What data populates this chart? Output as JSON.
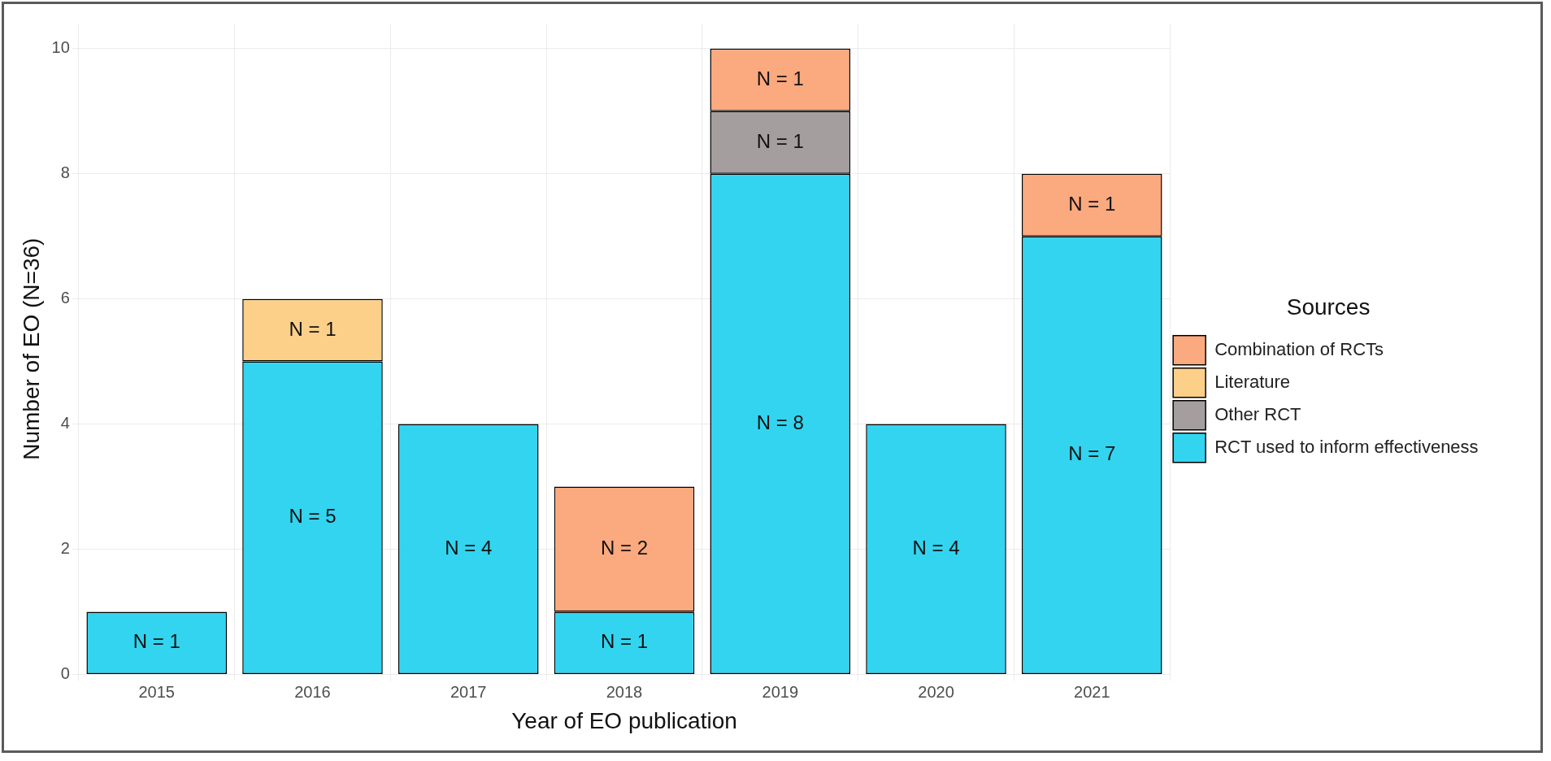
{
  "chart_data": {
    "type": "bar",
    "stacked": true,
    "xlabel": "Year of EO publication",
    "ylabel": "Number of EO (N=36)",
    "legend_title": "Sources",
    "legend": "right",
    "grid": true,
    "categories": [
      "2015",
      "2016",
      "2017",
      "2018",
      "2019",
      "2020",
      "2021"
    ],
    "ylim": [
      0,
      10.4
    ],
    "yticks": [
      0,
      2,
      4,
      6,
      8,
      10
    ],
    "series": [
      {
        "name": "RCT used to inform effectiveness",
        "color": "#33d4ef",
        "values": [
          1,
          5,
          4,
          1,
          8,
          4,
          7
        ],
        "value_labels": [
          "N = 1",
          "N = 5",
          "N = 4",
          "N = 1",
          "N = 8",
          "N = 4",
          "N = 7"
        ]
      },
      {
        "name": "Other RCT",
        "color": "#a59e9e",
        "values": [
          null,
          null,
          null,
          null,
          1,
          null,
          null
        ],
        "value_labels": [
          null,
          null,
          null,
          null,
          "N = 1",
          null,
          null
        ]
      },
      {
        "name": "Literature",
        "color": "#fdd08a",
        "values": [
          null,
          1,
          null,
          null,
          null,
          null,
          null
        ],
        "value_labels": [
          null,
          "N = 1",
          null,
          null,
          null,
          null,
          null
        ]
      },
      {
        "name": "Combination of RCTs",
        "color": "#fba97e",
        "values": [
          null,
          null,
          null,
          2,
          1,
          null,
          1
        ],
        "value_labels": [
          null,
          null,
          null,
          "N = 2",
          "N = 1",
          null,
          "N = 1"
        ]
      }
    ]
  }
}
